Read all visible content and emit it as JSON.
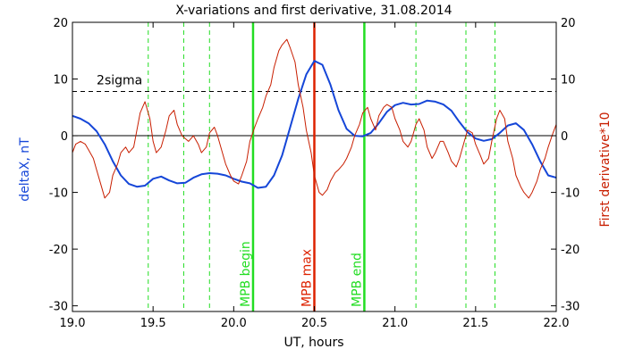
{
  "chart_data": {
    "type": "line",
    "title": "X-variations and first derivative, 31.08.2014",
    "xlabel": "UT, hours",
    "ylabel_left": "deltaX, nT",
    "ylabel_right": "First derivative*10",
    "xlim": [
      19.0,
      22.0
    ],
    "ylim": [
      -31,
      20
    ],
    "x_ticks": [
      19.0,
      19.5,
      20.0,
      20.5,
      21.0,
      21.5,
      22.0
    ],
    "x_tick_labels": [
      "19.0",
      "19.5",
      "20.0",
      "20.5",
      "21.0",
      "21.5",
      "22.0"
    ],
    "y_ticks": [
      20,
      10,
      0,
      -10,
      -20,
      -30
    ],
    "y_tick_labels": [
      "20",
      "10",
      "0",
      "-10",
      "-20",
      "-30"
    ],
    "grid": false,
    "colors": {
      "deltaX": "#1546d8",
      "derivative": "#c81e00",
      "mpb_edges": "#22dd22",
      "mpb_max": "#dd2200",
      "two_sigma": "#000000",
      "zero_line": "#000000"
    },
    "series": [
      {
        "key": "deltaX",
        "x": [
          19.0,
          19.05,
          19.1,
          19.15,
          19.2,
          19.25,
          19.3,
          19.35,
          19.4,
          19.45,
          19.5,
          19.55,
          19.6,
          19.65,
          19.7,
          19.75,
          19.8,
          19.85,
          19.9,
          19.95,
          20.0,
          20.05,
          20.1,
          20.15,
          20.2,
          20.25,
          20.3,
          20.35,
          20.4,
          20.45,
          20.5,
          20.55,
          20.6,
          20.65,
          20.7,
          20.75,
          20.8,
          20.85,
          20.9,
          20.95,
          21.0,
          21.05,
          21.1,
          21.15,
          21.2,
          21.25,
          21.3,
          21.35,
          21.4,
          21.45,
          21.5,
          21.55,
          21.6,
          21.65,
          21.7,
          21.75,
          21.8,
          21.85,
          21.9,
          21.95,
          22.0
        ],
        "y": [
          3.5,
          3.0,
          2.2,
          0.8,
          -1.5,
          -4.5,
          -7.0,
          -8.5,
          -9.0,
          -8.8,
          -7.6,
          -7.2,
          -7.9,
          -8.4,
          -8.3,
          -7.4,
          -6.8,
          -6.6,
          -6.7,
          -7.0,
          -7.6,
          -8.1,
          -8.4,
          -9.2,
          -9.0,
          -7.0,
          -3.5,
          1.5,
          6.5,
          10.8,
          13.2,
          12.5,
          9.0,
          4.5,
          1.2,
          0.0,
          -0.1,
          0.5,
          2.2,
          4.2,
          5.4,
          5.8,
          5.5,
          5.6,
          6.2,
          6.0,
          5.5,
          4.4,
          2.4,
          0.6,
          -0.5,
          -0.9,
          -0.6,
          0.5,
          1.8,
          2.2,
          1.0,
          -1.5,
          -4.5,
          -7.0,
          -7.4
        ]
      },
      {
        "key": "derivative",
        "x": [
          19.0,
          19.02,
          19.05,
          19.08,
          19.1,
          19.13,
          19.15,
          19.18,
          19.2,
          19.23,
          19.25,
          19.28,
          19.3,
          19.33,
          19.35,
          19.38,
          19.4,
          19.42,
          19.45,
          19.48,
          19.5,
          19.52,
          19.55,
          19.58,
          19.6,
          19.63,
          19.65,
          19.68,
          19.7,
          19.72,
          19.75,
          19.78,
          19.8,
          19.83,
          19.85,
          19.88,
          19.9,
          19.93,
          19.95,
          19.98,
          20.0,
          20.03,
          20.05,
          20.08,
          20.1,
          20.13,
          20.15,
          20.18,
          20.2,
          20.23,
          20.25,
          20.28,
          20.3,
          20.33,
          20.35,
          20.38,
          20.4,
          20.43,
          20.45,
          20.48,
          20.5,
          20.53,
          20.55,
          20.58,
          20.6,
          20.63,
          20.65,
          20.68,
          20.7,
          20.73,
          20.75,
          20.78,
          20.8,
          20.83,
          20.85,
          20.88,
          20.9,
          20.93,
          20.95,
          20.98,
          21.0,
          21.03,
          21.05,
          21.08,
          21.1,
          21.13,
          21.15,
          21.18,
          21.2,
          21.23,
          21.25,
          21.28,
          21.3,
          21.33,
          21.35,
          21.38,
          21.4,
          21.43,
          21.45,
          21.48,
          21.5,
          21.53,
          21.55,
          21.58,
          21.6,
          21.63,
          21.65,
          21.68,
          21.7,
          21.73,
          21.75,
          21.78,
          21.8,
          21.83,
          21.85,
          21.88,
          21.9,
          21.93,
          21.95,
          21.98,
          22.0
        ],
        "y": [
          -3,
          -1.5,
          -1,
          -1.5,
          -2.5,
          -4,
          -6,
          -9,
          -11,
          -10,
          -7,
          -5,
          -3,
          -2,
          -3,
          -2,
          1,
          4,
          6,
          3,
          -1,
          -3,
          -2,
          1,
          3.5,
          4.5,
          2,
          0,
          -0.5,
          -1,
          0,
          -1.5,
          -3,
          -2,
          0.5,
          1.5,
          0,
          -3,
          -5,
          -7,
          -8,
          -8.5,
          -7,
          -4.5,
          -1,
          1.5,
          3,
          5,
          7,
          9,
          12,
          15,
          16,
          17,
          15.5,
          13,
          9,
          5,
          1,
          -3,
          -7,
          -10,
          -10.5,
          -9.5,
          -8,
          -6.5,
          -6,
          -5,
          -4,
          -2,
          0,
          2,
          4,
          5,
          3,
          1,
          3.5,
          5,
          5.5,
          5,
          3,
          1,
          -1,
          -2,
          -1,
          2,
          3,
          1,
          -2,
          -4,
          -3,
          -1,
          -1,
          -3,
          -4.5,
          -5.5,
          -4,
          -1,
          1,
          0.5,
          -1.5,
          -3.5,
          -5,
          -4,
          -1,
          3,
          4.5,
          3,
          -1,
          -4,
          -7,
          -9,
          -10,
          -11,
          -10,
          -8,
          -6,
          -4,
          -2,
          0.5,
          2
        ]
      }
    ],
    "two_sigma": {
      "value": 7.8,
      "label": "2sigma"
    },
    "dashed_verticals": [
      19.47,
      19.69,
      19.85,
      21.13,
      21.44,
      21.62
    ],
    "events": [
      {
        "x": 20.12,
        "label": "MPB begin",
        "color_key": "mpb_edges"
      },
      {
        "x": 20.5,
        "label": "MPB max",
        "color_key": "mpb_max"
      },
      {
        "x": 20.81,
        "label": "MPB end",
        "color_key": "mpb_edges"
      }
    ]
  }
}
